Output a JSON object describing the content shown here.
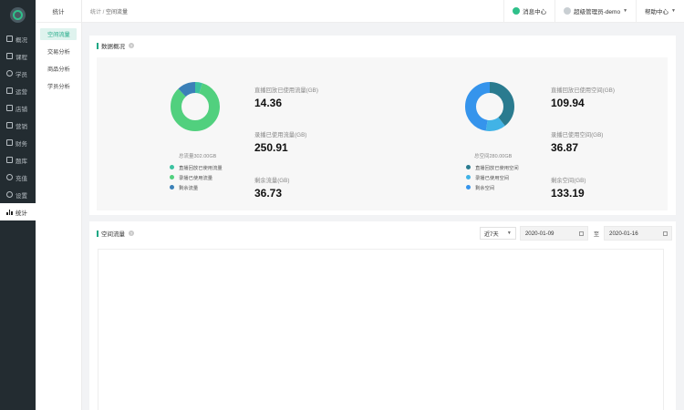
{
  "nav": {
    "items": [
      {
        "label": "概况",
        "icon": "overview-icon"
      },
      {
        "label": "课程",
        "icon": "course-icon"
      },
      {
        "label": "学员",
        "icon": "student-icon"
      },
      {
        "label": "运营",
        "icon": "operation-icon"
      },
      {
        "label": "店铺",
        "icon": "shop-icon"
      },
      {
        "label": "营销",
        "icon": "marketing-icon"
      },
      {
        "label": "财务",
        "icon": "finance-icon"
      },
      {
        "label": "题库",
        "icon": "question-bank-icon"
      },
      {
        "label": "充值",
        "icon": "recharge-icon"
      },
      {
        "label": "设置",
        "icon": "settings-icon"
      },
      {
        "label": "统计",
        "icon": "statistics-icon"
      }
    ]
  },
  "subnav": {
    "title": "统计",
    "items": [
      "空间流量",
      "交易分析",
      "商品分析",
      "学员分析"
    ]
  },
  "header": {
    "breadcrumb_root": "统计",
    "breadcrumb_sep": " / ",
    "breadcrumb_current": "空间流量",
    "messages": "消息中心",
    "user": "超级管理员-demo",
    "help": "帮助中心"
  },
  "overview": {
    "title": "数据概况",
    "traffic": {
      "total": "总流量302.00GB",
      "legend": [
        "直播回放已使用流量",
        "录播已使用流量",
        "剩余流量"
      ],
      "colors": [
        "#3cc2a0",
        "#51d07e",
        "#3b80b8"
      ],
      "stats": [
        {
          "label": "直播回放已使用流量(GB)",
          "value": "14.36"
        },
        {
          "label": "录播已使用流量(GB)",
          "value": "250.91"
        },
        {
          "label": "剩余流量(GB)",
          "value": "36.73"
        }
      ]
    },
    "space": {
      "total": "总空间280.00GB",
      "legend": [
        "直播回放已使用空间",
        "录播已使用空间",
        "剩余空间"
      ],
      "colors": [
        "#2a7b8f",
        "#41b3e6",
        "#3594ec"
      ],
      "stats": [
        {
          "label": "直播回放已使用空间(GB)",
          "value": "109.94"
        },
        {
          "label": "录播已使用空间(GB)",
          "value": "36.87"
        },
        {
          "label": "剩余空间(GB)",
          "value": "133.19"
        }
      ]
    }
  },
  "flow": {
    "title": "空间流量",
    "range_select": "近7天",
    "date_from": "2020-01-09",
    "date_to_sep": "至",
    "date_to": "2020-01-16"
  }
}
